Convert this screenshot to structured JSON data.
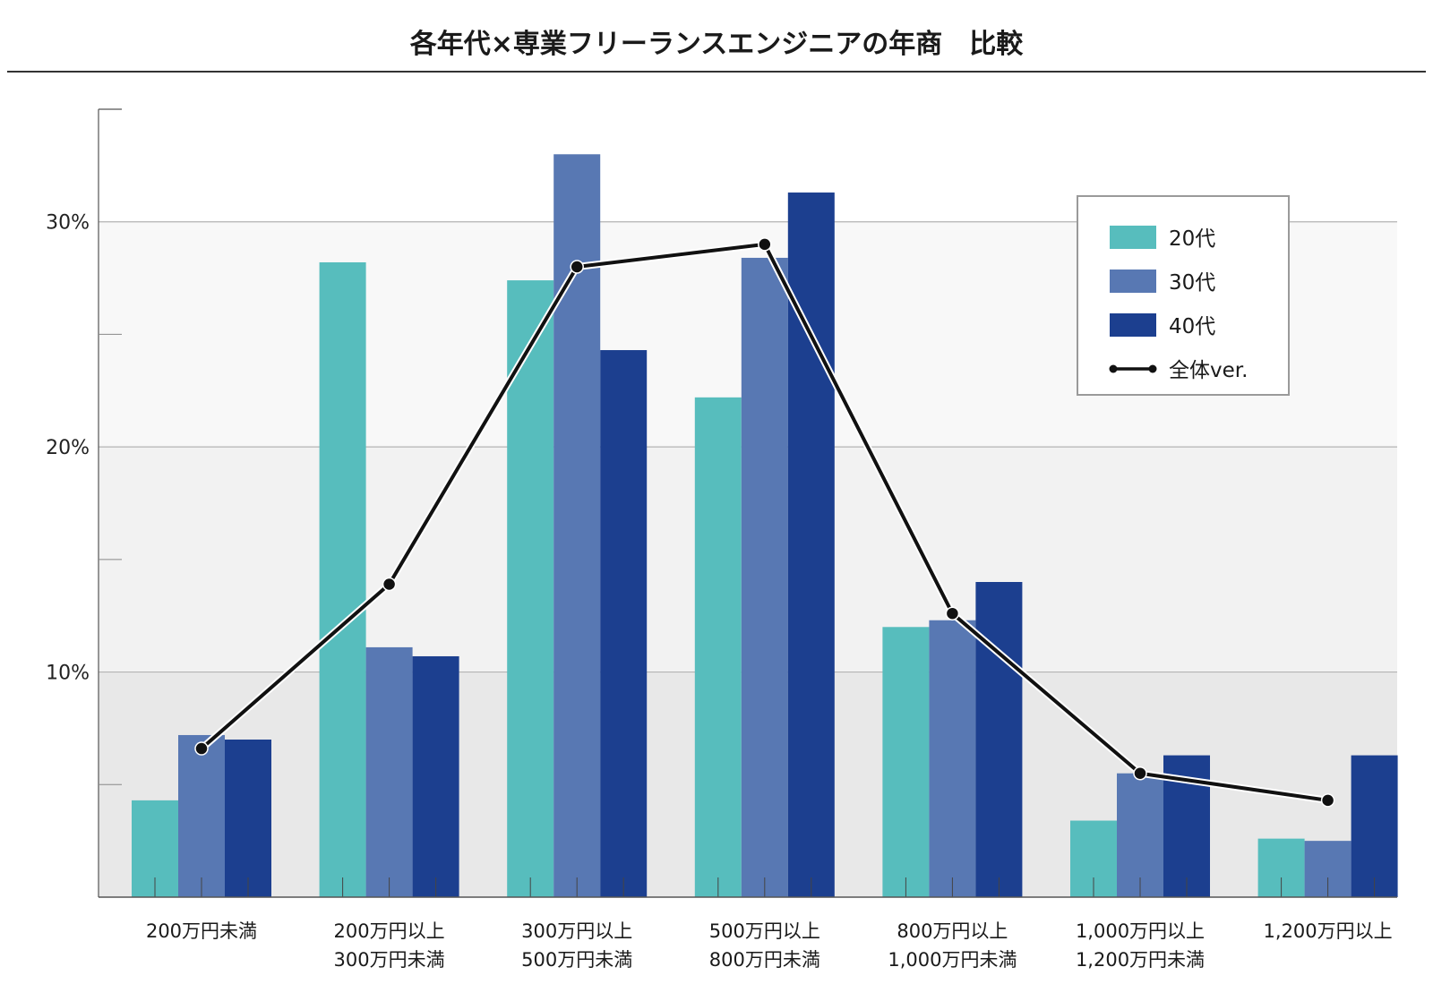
{
  "chart_data": {
    "type": "bar",
    "title": "各年代×専業フリーランスエンジニアの年商　比較",
    "xlabel": "",
    "ylabel": "",
    "ylim": [
      0,
      35
    ],
    "yticks": [
      10,
      20,
      30
    ],
    "ytick_labels": [
      "10%",
      "20%",
      "30%"
    ],
    "minor_yticks": [
      5,
      15,
      25
    ],
    "band_colors": [
      "#e8e8e8",
      "#f2f2f2",
      "#f8f8f8",
      "#ffffff"
    ],
    "categories": [
      [
        "200万円未満"
      ],
      [
        "200万円以上",
        "300万円未満"
      ],
      [
        "300万円以上",
        "500万円未満"
      ],
      [
        "500万円以上",
        "800万円未満"
      ],
      [
        "800万円以上",
        "1,000万円未満"
      ],
      [
        "1,000万円以上",
        "1,200万円未満"
      ],
      [
        "1,200万円以上"
      ]
    ],
    "series": [
      {
        "name": "20代",
        "type": "bar",
        "color": "#57bdbd",
        "values": [
          4.3,
          28.2,
          27.4,
          22.2,
          12.0,
          3.4,
          2.6
        ]
      },
      {
        "name": "30代",
        "type": "bar",
        "color": "#5878b3",
        "values": [
          7.2,
          11.1,
          33.0,
          28.4,
          12.3,
          5.5,
          2.5
        ]
      },
      {
        "name": "40代",
        "type": "bar",
        "color": "#1c3f8f",
        "values": [
          7.0,
          10.7,
          24.3,
          31.3,
          14.0,
          6.3,
          6.3
        ]
      },
      {
        "name": "全体ver.",
        "type": "line",
        "color": "#111111",
        "values": [
          6.6,
          13.9,
          28.0,
          29.0,
          12.6,
          5.5,
          4.3
        ]
      }
    ],
    "legend_position": "top-right",
    "grid": true
  }
}
